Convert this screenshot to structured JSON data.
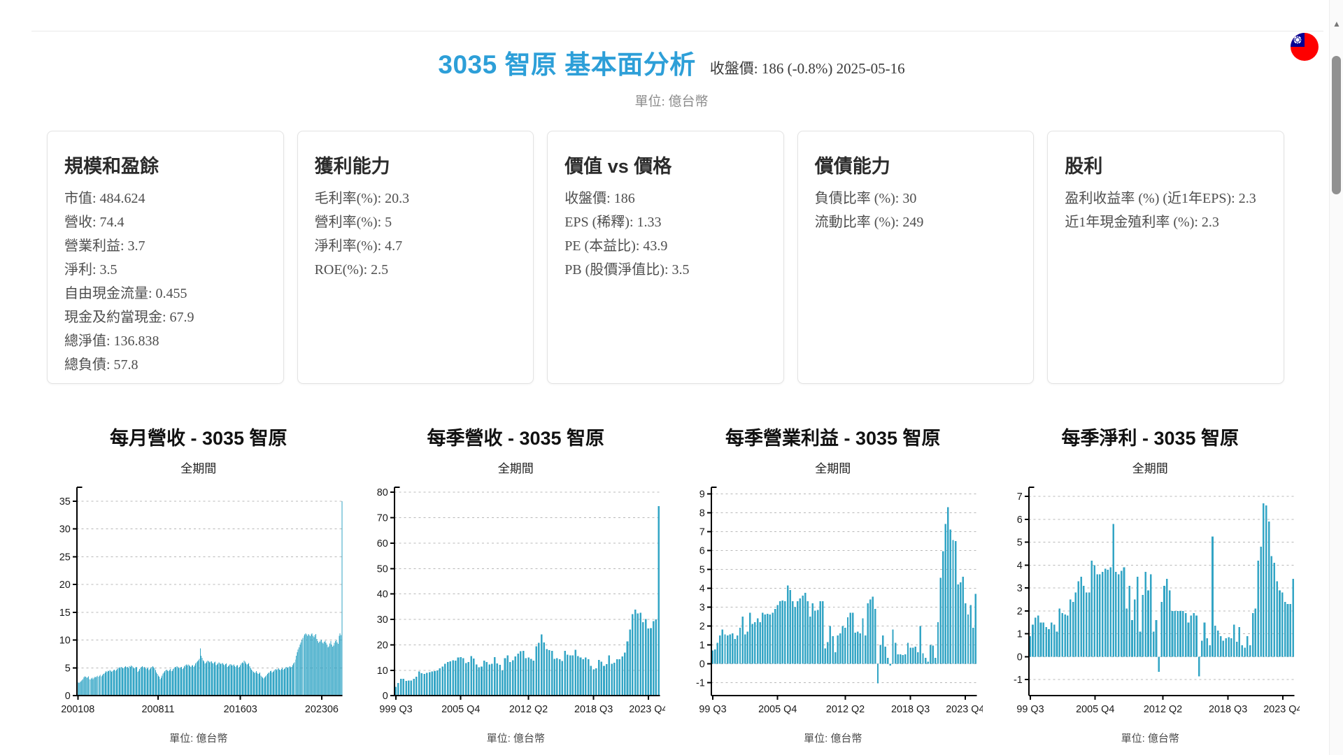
{
  "header": {
    "title": "3035 智原 基本面分析",
    "price_info": "收盤價: 186 (-0.8%) 2025-05-16",
    "unit_note": "單位: 億台幣"
  },
  "icons": {
    "flag": "taiwan-flag",
    "scroll_up": "triangle-up"
  },
  "cards": [
    {
      "title": "規模和盈餘",
      "items": [
        "市值: 484.624",
        "營收: 74.4",
        "營業利益: 3.7",
        "淨利: 3.5",
        "自由現金流量: 0.455",
        "現金及約當現金: 67.9",
        "總淨值: 136.838",
        "總負債: 57.8"
      ]
    },
    {
      "title": "獲利能力",
      "items": [
        "毛利率(%): 20.3",
        "營利率(%): 5",
        "淨利率(%): 4.7",
        "ROE(%): 2.5"
      ]
    },
    {
      "title": "價值 vs 價格",
      "items": [
        "收盤價: 186",
        "EPS (稀釋): 1.33",
        "PE (本益比): 43.9",
        "PB (股價淨值比): 3.5"
      ]
    },
    {
      "title": "償債能力",
      "items": [
        "負債比率 (%): 30",
        "流動比率 (%): 249"
      ]
    },
    {
      "title": "股利",
      "items": [
        "盈利收益率 (%) (近1年EPS): 2.3",
        "近1年現金殖利率 (%): 2.3"
      ]
    }
  ],
  "chart_data": [
    {
      "type": "bar",
      "title": "每月營收 - 3035 智原",
      "subtitle": "全期間",
      "footer": "單位: 億台幣",
      "xlabel": "",
      "ylabel": "",
      "bar_color": "#33a5c5",
      "grid": "dashed-horizontal",
      "legend": "none",
      "ylim": [
        0,
        37.5
      ],
      "yticks": [
        0,
        5,
        10,
        15,
        20,
        25,
        30,
        35
      ],
      "xticks": [
        {
          "label": "200108",
          "pos": 0.004
        },
        {
          "label": "200811",
          "pos": 0.306
        },
        {
          "label": "201603",
          "pos": 0.616
        },
        {
          "label": "202306",
          "pos": 0.922
        }
      ],
      "values": [
        2.2,
        2.4,
        2.3,
        2.5,
        2.6,
        2.8,
        3.0,
        3.3,
        3.5,
        3.4,
        3.2,
        3.3,
        3.5,
        3.0,
        2.9,
        3.1,
        3.2,
        3.0,
        3.2,
        3.4,
        3.3,
        3.5,
        3.6,
        3.4,
        3.6,
        3.8,
        3.5,
        3.7,
        3.9,
        4.0,
        4.2,
        4.4,
        4.3,
        4.5,
        4.4,
        4.6,
        4.5,
        4.3,
        4.4,
        4.6,
        4.7,
        4.5,
        4.6,
        4.8,
        5.0,
        5.1,
        5.0,
        5.2,
        5.1,
        4.9,
        5.0,
        5.2,
        5.3,
        5.1,
        5.2,
        5.0,
        5.3,
        5.2,
        5.4,
        5.3,
        5.1,
        4.9,
        5.0,
        5.2,
        5.1,
        4.3,
        4.5,
        4.8,
        5.0,
        5.2,
        5.3,
        5.1,
        5.2,
        5.0,
        4.8,
        4.9,
        5.1,
        4.6,
        4.8,
        5.0,
        5.2,
        5.3,
        5.1,
        4.9,
        4.6,
        4.2,
        3.9,
        3.6,
        3.4,
        3.0,
        3.2,
        3.6,
        4.0,
        4.2,
        4.4,
        4.6,
        4.7,
        4.5,
        4.4,
        4.6,
        4.8,
        4.4,
        4.5,
        4.8,
        5.0,
        5.2,
        5.1,
        5.3,
        5.2,
        5.0,
        4.9,
        5.1,
        5.2,
        4.8,
        5.0,
        5.3,
        5.5,
        5.6,
        5.4,
        5.6,
        5.5,
        5.3,
        5.2,
        5.4,
        5.5,
        5.2,
        5.4,
        5.8,
        6.0,
        6.2,
        6.4,
        6.6,
        8.5,
        7.2,
        6.8,
        6.4,
        6.2,
        5.8,
        5.9,
        6.1,
        6.3,
        6.2,
        6.0,
        6.1,
        6.2,
        5.9,
        5.8,
        6.0,
        6.1,
        5.5,
        5.6,
        5.8,
        6.0,
        5.9,
        5.7,
        5.8,
        5.9,
        5.6,
        5.5,
        5.7,
        5.8,
        5.2,
        5.3,
        5.5,
        5.7,
        5.6,
        5.4,
        5.5,
        5.6,
        5.3,
        5.2,
        5.4,
        5.5,
        5.0,
        5.2,
        5.5,
        5.8,
        6.0,
        5.9,
        6.3,
        6.1,
        5.8,
        5.6,
        5.7,
        5.9,
        5.3,
        5.0,
        4.7,
        4.5,
        4.3,
        4.1,
        4.2,
        4.4,
        4.1,
        3.9,
        4.0,
        4.2,
        3.6,
        3.4,
        3.2,
        3.1,
        3.3,
        3.5,
        3.7,
        3.9,
        4.1,
        4.2,
        4.4,
        4.5,
        4.2,
        4.3,
        4.5,
        4.7,
        4.8,
        4.6,
        4.8,
        4.9,
        4.7,
        4.6,
        4.8,
        5.0,
        4.7,
        4.8,
        5.0,
        5.2,
        5.1,
        5.0,
        5.2,
        5.3,
        5.1,
        5.2,
        5.5,
        5.8,
        6.0,
        6.5,
        7.2,
        7.8,
        8.3,
        8.7,
        9.2,
        9.6,
        10.0,
        10.4,
        10.8,
        11.0,
        11.2,
        11.0,
        10.8,
        11.1,
        10.9,
        10.7,
        11.0,
        11.2,
        10.8,
        10.5,
        10.9,
        11.1,
        10.2,
        9.8,
        9.5,
        9.7,
        9.9,
        10.1,
        9.6,
        9.4,
        9.7,
        9.9,
        9.5,
        9.2,
        8.7,
        8.9,
        9.4,
        9.8,
        9.2,
        8.8,
        9.0,
        9.5,
        9.8,
        10.0,
        9.6,
        9.3,
        10.8,
        11.2,
        10.9,
        35.0
      ]
    },
    {
      "type": "bar",
      "title": "每季營收 - 3035 智原",
      "subtitle": "全期間",
      "footer": "單位: 億台幣",
      "xlabel": "",
      "ylabel": "",
      "bar_color": "#33a5c5",
      "grid": "dashed-horizontal",
      "legend": "none",
      "ylim": [
        0,
        82
      ],
      "yticks": [
        0,
        10,
        20,
        30,
        40,
        50,
        60,
        70,
        80
      ],
      "xticks": [
        {
          "label": "999 Q3",
          "pos": 0.006
        },
        {
          "label": "2005 Q4",
          "pos": 0.25
        },
        {
          "label": "2012 Q2",
          "pos": 0.505
        },
        {
          "label": "2018 Q3",
          "pos": 0.75
        },
        {
          "label": "2023 Q4",
          "pos": 0.956
        }
      ],
      "values": [
        3.5,
        5.0,
        6.7,
        6.6,
        5.8,
        5.9,
        6.0,
        6.7,
        7.5,
        9.5,
        8.8,
        8.6,
        9.0,
        9.3,
        9.5,
        9.7,
        10.0,
        10.8,
        11.5,
        12.5,
        13.2,
        13.5,
        14.0,
        13.8,
        15.0,
        15.2,
        14.8,
        12.8,
        13.3,
        15.6,
        14.6,
        12.3,
        11.2,
        11.5,
        13.8,
        13.3,
        12.3,
        12.5,
        15.2,
        12.7,
        12.2,
        10.0,
        14.7,
        15.9,
        13.2,
        14.0,
        15.5,
        16.5,
        17.5,
        17.7,
        14.7,
        15.0,
        14.5,
        13.8,
        19.5,
        20.8,
        24.1,
        21.0,
        18.4,
        17.9,
        17.6,
        14.5,
        14.8,
        14.4,
        13.7,
        17.6,
        16.1,
        15.8,
        15.9,
        18.1,
        15.6,
        15.1,
        14.4,
        15.0,
        14.3,
        11.7,
        10.3,
        10.8,
        14.1,
        13.4,
        11.8,
        12.4,
        15.9,
        12.6,
        13.0,
        14.4,
        14.3,
        15.4,
        16.9,
        21.4,
        26.0,
        32.1,
        33.8,
        32.4,
        32.6,
        28.9,
        30.1,
        26.4,
        26.6,
        29.4,
        30.0,
        74.5
      ]
    },
    {
      "type": "bar",
      "title": "每季營業利益 - 3035 智原",
      "subtitle": "全期間",
      "footer": "單位: 億台幣",
      "xlabel": "",
      "ylabel": "",
      "bar_color": "#33a5c5",
      "grid": "dashed-horizontal",
      "legend": "none",
      "ylim": [
        -1.7,
        9.35
      ],
      "yticks": [
        -1,
        0,
        1,
        2,
        3,
        4,
        5,
        6,
        7,
        8,
        9
      ],
      "xticks": [
        {
          "label": "99 Q3",
          "pos": 0.006
        },
        {
          "label": "2005 Q4",
          "pos": 0.25
        },
        {
          "label": "2012 Q2",
          "pos": 0.505
        },
        {
          "label": "2018 Q3",
          "pos": 0.75
        },
        {
          "label": "2023 Q4",
          "pos": 0.956
        }
      ],
      "values": [
        0.7,
        0.75,
        1.1,
        1.5,
        1.8,
        1.55,
        1.5,
        1.55,
        1.6,
        1.3,
        1.5,
        1.9,
        2.5,
        1.55,
        1.7,
        2.7,
        2.1,
        2.2,
        2.4,
        2.2,
        2.7,
        2.6,
        2.65,
        2.6,
        2.7,
        2.9,
        3.1,
        3.3,
        3.35,
        3.3,
        4.15,
        3.9,
        3.3,
        3.0,
        3.3,
        3.45,
        3.6,
        3.75,
        3.3,
        2.5,
        3.2,
        2.8,
        2.85,
        3.3,
        3.3,
        0.8,
        1.15,
        2.0,
        1.45,
        0.6,
        1.5,
        1.6,
        2.0,
        1.9,
        2.45,
        2.7,
        2.7,
        1.65,
        1.7,
        1.6,
        2.4,
        1.5,
        3.2,
        3.4,
        3.55,
        2.9,
        -1.05,
        1.0,
        1.5,
        0.9,
        0.3,
        -0.1,
        1.8,
        1.1,
        0.5,
        0.5,
        0.45,
        0.5,
        1.1,
        0.85,
        0.85,
        0.9,
        0.6,
        2.0,
        0.55,
        0.3,
        0.1,
        1.0,
        0.95,
        0.3,
        2.2,
        4.55,
        5.95,
        7.4,
        8.3,
        7.1,
        6.55,
        6.5,
        4.2,
        4.3,
        4.6,
        3.2,
        2.6,
        3.1,
        1.9,
        3.7
      ]
    },
    {
      "type": "bar",
      "title": "每季淨利 - 3035 智原",
      "subtitle": "全期間",
      "footer": "單位: 億台幣",
      "xlabel": "",
      "ylabel": "",
      "bar_color": "#33a5c5",
      "grid": "dashed-horizontal",
      "legend": "none",
      "ylim": [
        -1.7,
        7.4
      ],
      "yticks": [
        -1,
        0,
        1,
        2,
        3,
        4,
        5,
        6,
        7
      ],
      "xticks": [
        {
          "label": "99 Q3",
          "pos": 0.006
        },
        {
          "label": "2005 Q4",
          "pos": 0.25
        },
        {
          "label": "2012 Q2",
          "pos": 0.505
        },
        {
          "label": "2018 Q3",
          "pos": 0.75
        },
        {
          "label": "2023 Q4",
          "pos": 0.956
        }
      ],
      "values": [
        0.9,
        1.4,
        1.7,
        1.8,
        1.5,
        1.5,
        1.3,
        1.2,
        1.5,
        1.4,
        1.1,
        2.1,
        1.9,
        1.85,
        1.8,
        2.5,
        2.4,
        2.8,
        3.3,
        3.5,
        3.1,
        2.8,
        2.8,
        4.2,
        4.0,
        3.6,
        3.6,
        3.7,
        3.85,
        3.8,
        3.9,
        5.8,
        3.7,
        3.6,
        3.75,
        3.9,
        2.1,
        3.1,
        1.6,
        2.5,
        3.5,
        1.1,
        2.7,
        3.7,
        2.9,
        3.6,
        1.1,
        1.6,
        -0.65,
        2.4,
        3.1,
        3.4,
        2.9,
        2.0,
        2.0,
        2.0,
        2.0,
        2.0,
        1.9,
        1.5,
        1.8,
        1.9,
        1.8,
        -0.85,
        0.7,
        1.5,
        0.8,
        0.5,
        5.25,
        1.35,
        1.15,
        0.9,
        0.7,
        0.8,
        0.85,
        0.8,
        1.4,
        0.65,
        1.3,
        0.5,
        0.4,
        0.9,
        0.5,
        1.9,
        2.1,
        4.2,
        4.8,
        6.7,
        6.6,
        5.9,
        4.4,
        4.1,
        3.3,
        2.9,
        2.8,
        2.4,
        2.3,
        2.3,
        3.4
      ]
    }
  ]
}
